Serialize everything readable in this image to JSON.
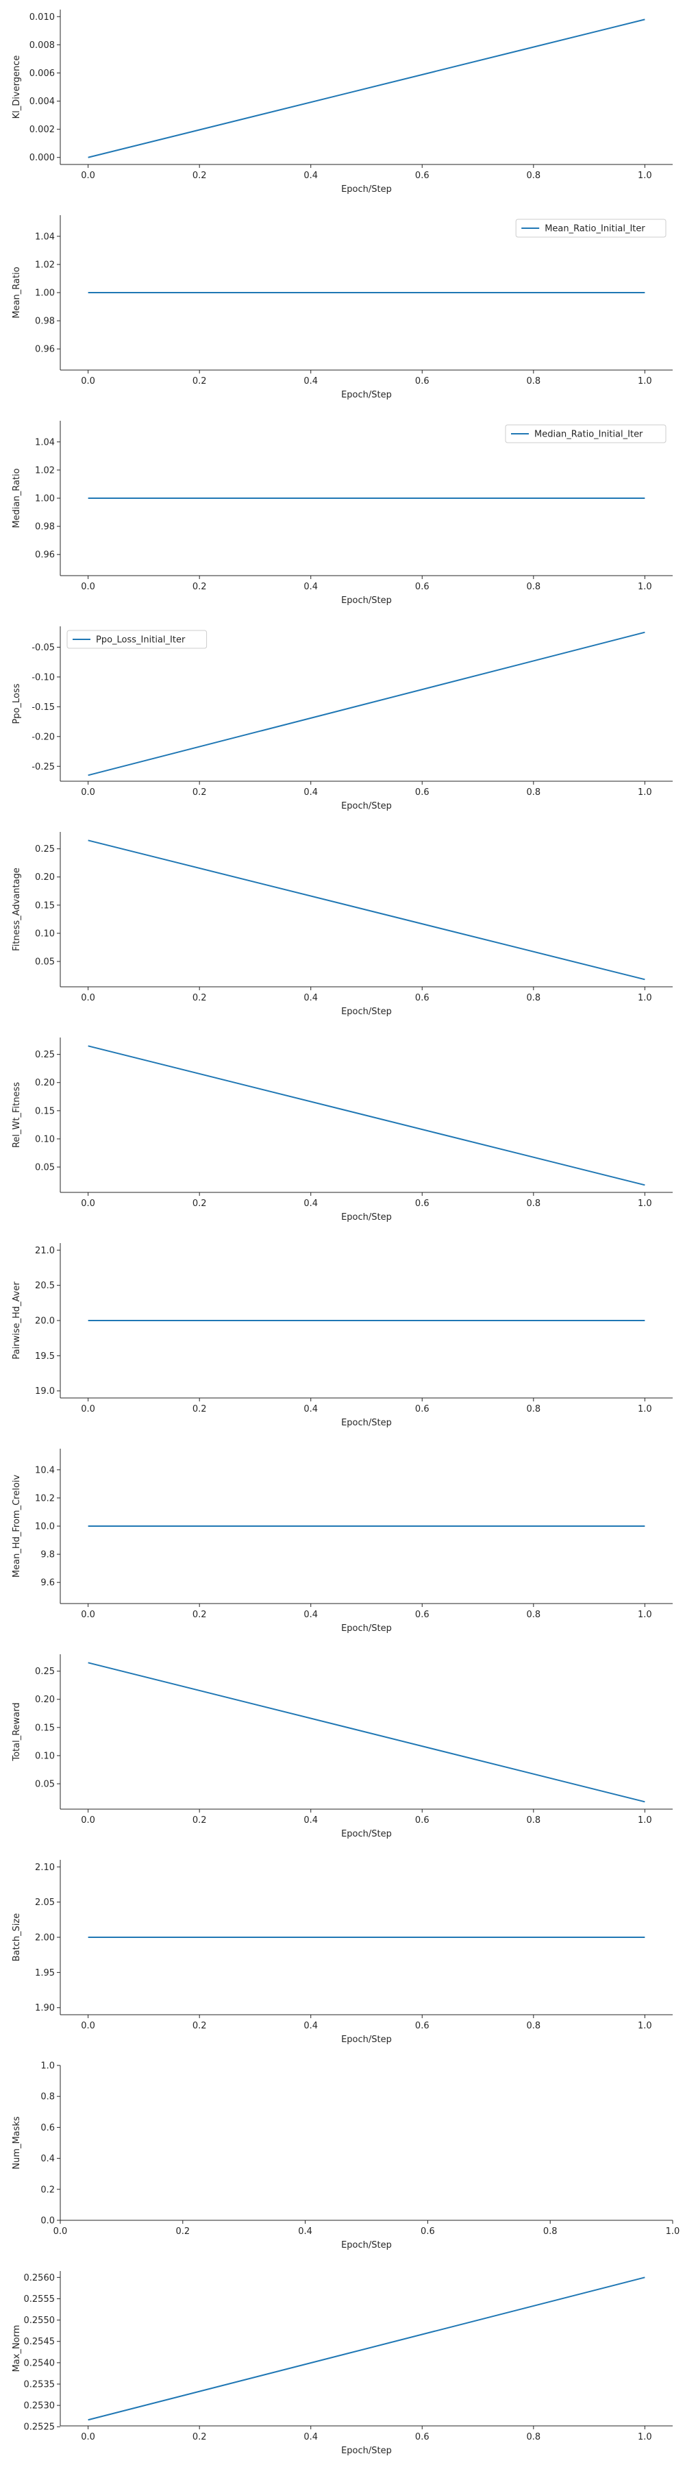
{
  "colors": {
    "series": "#1f77b4",
    "axis": "#262626",
    "legend_border": "#cccccc"
  },
  "chart_data": [
    {
      "type": "line",
      "xlabel": "Epoch/Step",
      "ylabel": "Kl_Divergence",
      "xlim": [
        -0.05,
        1.05
      ],
      "ylim": [
        -0.0005,
        0.0105
      ],
      "xticks": [
        "0.0",
        "0.2",
        "0.4",
        "0.6",
        "0.8",
        "1.0"
      ],
      "yticks": [
        "0.000",
        "0.002",
        "0.004",
        "0.006",
        "0.008",
        "0.010"
      ],
      "grid": false,
      "legend": null,
      "series": [
        {
          "x": [
            0,
            1
          ],
          "y": [
            0.0,
            0.0098
          ]
        }
      ]
    },
    {
      "type": "line",
      "xlabel": "Epoch/Step",
      "ylabel": "Mean_Ratio",
      "xlim": [
        -0.05,
        1.05
      ],
      "ylim": [
        0.945,
        1.055
      ],
      "xticks": [
        "0.0",
        "0.2",
        "0.4",
        "0.6",
        "0.8",
        "1.0"
      ],
      "yticks": [
        "0.96",
        "0.98",
        "1.00",
        "1.02",
        "1.04"
      ],
      "grid": false,
      "legend": "upper-right",
      "series": [
        {
          "name": "Mean_Ratio_Initial_Iter",
          "x": [
            0,
            1
          ],
          "y": [
            1.0,
            1.0
          ]
        }
      ]
    },
    {
      "type": "line",
      "xlabel": "Epoch/Step",
      "ylabel": "Median_Ratio",
      "xlim": [
        -0.05,
        1.05
      ],
      "ylim": [
        0.945,
        1.055
      ],
      "xticks": [
        "0.0",
        "0.2",
        "0.4",
        "0.6",
        "0.8",
        "1.0"
      ],
      "yticks": [
        "0.96",
        "0.98",
        "1.00",
        "1.02",
        "1.04"
      ],
      "grid": false,
      "legend": "upper-right",
      "series": [
        {
          "name": "Median_Ratio_Initial_Iter",
          "x": [
            0,
            1
          ],
          "y": [
            1.0,
            1.0
          ]
        }
      ]
    },
    {
      "type": "line",
      "xlabel": "Epoch/Step",
      "ylabel": "Ppo_Loss",
      "xlim": [
        -0.05,
        1.05
      ],
      "ylim": [
        -0.275,
        -0.015
      ],
      "xticks": [
        "0.0",
        "0.2",
        "0.4",
        "0.6",
        "0.8",
        "1.0"
      ],
      "yticks": [
        "-0.25",
        "-0.20",
        "-0.15",
        "-0.10",
        "-0.05"
      ],
      "grid": false,
      "legend": "upper-left",
      "series": [
        {
          "name": "Ppo_Loss_Initial_Iter",
          "x": [
            0,
            1
          ],
          "y": [
            -0.265,
            -0.025
          ]
        }
      ]
    },
    {
      "type": "line",
      "xlabel": "Epoch/Step",
      "ylabel": "Fitness_Advantage",
      "xlim": [
        -0.05,
        1.05
      ],
      "ylim": [
        0.005,
        0.28
      ],
      "xticks": [
        "0.0",
        "0.2",
        "0.4",
        "0.6",
        "0.8",
        "1.0"
      ],
      "yticks": [
        "0.05",
        "0.10",
        "0.15",
        "0.20",
        "0.25"
      ],
      "grid": false,
      "legend": null,
      "series": [
        {
          "x": [
            0,
            1
          ],
          "y": [
            0.265,
            0.018
          ]
        }
      ]
    },
    {
      "type": "line",
      "xlabel": "Epoch/Step",
      "ylabel": "Rel_Wt_Fitness",
      "xlim": [
        -0.05,
        1.05
      ],
      "ylim": [
        0.005,
        0.28
      ],
      "xticks": [
        "0.0",
        "0.2",
        "0.4",
        "0.6",
        "0.8",
        "1.0"
      ],
      "yticks": [
        "0.05",
        "0.10",
        "0.15",
        "0.20",
        "0.25"
      ],
      "grid": false,
      "legend": null,
      "series": [
        {
          "x": [
            0,
            1
          ],
          "y": [
            0.265,
            0.018
          ]
        }
      ]
    },
    {
      "type": "line",
      "xlabel": "Epoch/Step",
      "ylabel": "Pairwise_Hd_Aver",
      "xlim": [
        -0.05,
        1.05
      ],
      "ylim": [
        18.9,
        21.1
      ],
      "xticks": [
        "0.0",
        "0.2",
        "0.4",
        "0.6",
        "0.8",
        "1.0"
      ],
      "yticks": [
        "19.0",
        "19.5",
        "20.0",
        "20.5",
        "21.0"
      ],
      "grid": false,
      "legend": null,
      "series": [
        {
          "x": [
            0,
            1
          ],
          "y": [
            20.0,
            20.0
          ]
        }
      ]
    },
    {
      "type": "line",
      "xlabel": "Epoch/Step",
      "ylabel": "Mean_Hd_From_Creloiv",
      "xlim": [
        -0.05,
        1.05
      ],
      "ylim": [
        9.45,
        10.55
      ],
      "xticks": [
        "0.0",
        "0.2",
        "0.4",
        "0.6",
        "0.8",
        "1.0"
      ],
      "yticks": [
        "9.6",
        "9.8",
        "10.0",
        "10.2",
        "10.4"
      ],
      "grid": false,
      "legend": null,
      "series": [
        {
          "x": [
            0,
            1
          ],
          "y": [
            10.0,
            10.0
          ]
        }
      ]
    },
    {
      "type": "line",
      "xlabel": "Epoch/Step",
      "ylabel": "Total_Reward",
      "xlim": [
        -0.05,
        1.05
      ],
      "ylim": [
        0.005,
        0.28
      ],
      "xticks": [
        "0.0",
        "0.2",
        "0.4",
        "0.6",
        "0.8",
        "1.0"
      ],
      "yticks": [
        "0.05",
        "0.10",
        "0.15",
        "0.20",
        "0.25"
      ],
      "grid": false,
      "legend": null,
      "series": [
        {
          "x": [
            0,
            1
          ],
          "y": [
            0.265,
            0.018
          ]
        }
      ]
    },
    {
      "type": "line",
      "xlabel": "Epoch/Step",
      "ylabel": "Batch_Size",
      "xlim": [
        -0.05,
        1.05
      ],
      "ylim": [
        1.89,
        2.11
      ],
      "xticks": [
        "0.0",
        "0.2",
        "0.4",
        "0.6",
        "0.8",
        "1.0"
      ],
      "yticks": [
        "1.90",
        "1.95",
        "2.00",
        "2.05",
        "2.10"
      ],
      "grid": false,
      "legend": null,
      "series": [
        {
          "x": [
            0,
            1
          ],
          "y": [
            2.0,
            2.0
          ]
        }
      ]
    },
    {
      "type": "line",
      "xlabel": "Epoch/Step",
      "ylabel": "Num_Masks",
      "xlim": [
        0.0,
        1.0
      ],
      "ylim": [
        0.0,
        1.0
      ],
      "xticks": [
        "0.0",
        "0.2",
        "0.4",
        "0.6",
        "0.8",
        "1.0"
      ],
      "yticks": [
        "0.0",
        "0.2",
        "0.4",
        "0.6",
        "0.8",
        "1.0"
      ],
      "grid": false,
      "legend": null,
      "series": []
    },
    {
      "type": "line",
      "xlabel": "Epoch/Step",
      "ylabel": "Max_Norm",
      "xlim": [
        -0.05,
        1.05
      ],
      "ylim": [
        0.25252,
        0.25615
      ],
      "xticks": [
        "0.0",
        "0.2",
        "0.4",
        "0.6",
        "0.8",
        "1.0"
      ],
      "yticks": [
        "0.2525",
        "0.2530",
        "0.2535",
        "0.2540",
        "0.2545",
        "0.2550",
        "0.2555",
        "0.2560"
      ],
      "grid": false,
      "legend": null,
      "series": [
        {
          "x": [
            0,
            1
          ],
          "y": [
            0.25266,
            0.256
          ]
        }
      ]
    }
  ]
}
